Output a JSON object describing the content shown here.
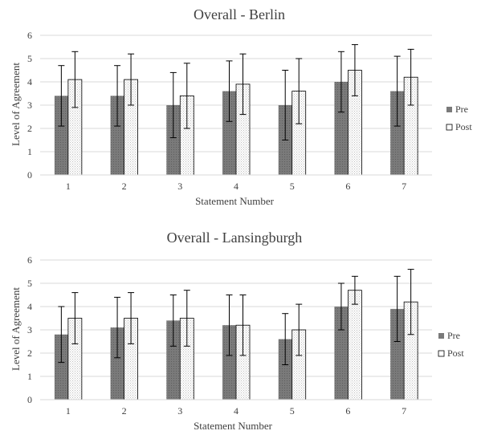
{
  "chart_data": [
    {
      "type": "bar",
      "title": "Overall  - Berlin",
      "xlabel": "Statement Number",
      "ylabel": "Level of Agreement",
      "categories": [
        "1",
        "2",
        "3",
        "4",
        "5",
        "6",
        "7"
      ],
      "ylim": [
        0,
        6
      ],
      "yticks": [
        "0",
        "1",
        "2",
        "3",
        "4",
        "5",
        "6"
      ],
      "grid": true,
      "legend_position": "right",
      "series": [
        {
          "name": "Pre",
          "color": "#7f7f7f",
          "values": [
            3.4,
            3.4,
            3.0,
            3.6,
            3.0,
            4.0,
            3.6
          ],
          "error": [
            1.3,
            1.3,
            1.4,
            1.3,
            1.5,
            1.3,
            1.5
          ]
        },
        {
          "name": "Post",
          "color": "#f2f2f2",
          "values": [
            4.1,
            4.1,
            3.4,
            3.9,
            3.6,
            4.5,
            4.2
          ],
          "error": [
            1.2,
            1.1,
            1.4,
            1.3,
            1.4,
            1.1,
            1.2
          ]
        }
      ]
    },
    {
      "type": "bar",
      "title": "Overall  - Lansingburgh",
      "xlabel": "Statement Number",
      "ylabel": "Level of Agreement",
      "categories": [
        "1",
        "2",
        "3",
        "4",
        "5",
        "6",
        "7"
      ],
      "ylim": [
        0,
        6
      ],
      "yticks": [
        "0",
        "1",
        "2",
        "3",
        "4",
        "5",
        "6"
      ],
      "grid": true,
      "legend_position": "right",
      "series": [
        {
          "name": "Pre",
          "color": "#7f7f7f",
          "values": [
            2.8,
            3.1,
            3.4,
            3.2,
            2.6,
            4.0,
            3.9
          ],
          "error": [
            1.2,
            1.3,
            1.1,
            1.3,
            1.1,
            1.0,
            1.4
          ]
        },
        {
          "name": "Post",
          "color": "#f2f2f2",
          "values": [
            3.5,
            3.5,
            3.5,
            3.2,
            3.0,
            4.7,
            4.2
          ],
          "error": [
            1.1,
            1.1,
            1.2,
            1.3,
            1.1,
            0.6,
            1.4
          ]
        }
      ]
    }
  ]
}
